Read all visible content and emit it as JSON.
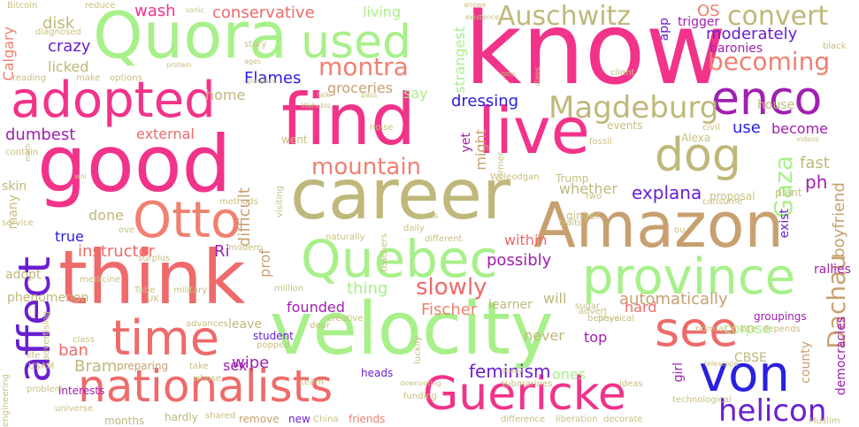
{
  "cloud": {
    "background": "#ffffff",
    "palette": {
      "pink": "#f2338a",
      "rose": "#ef6a6a",
      "salmon": "#f08070",
      "lime": "#a8f08a",
      "olive": "#bfb87a",
      "tan": "#c8a070",
      "purple": "#a020b0",
      "violet": "#6a1fd0",
      "blue": "#2a20e0",
      "khaki": "#c8c080"
    },
    "words": [
      {
        "text": "know",
        "color": "#f2338a"
      },
      {
        "text": "good",
        "color": "#f2338a"
      },
      {
        "text": "Quora",
        "color": "#a8f08a"
      },
      {
        "text": "find",
        "color": "#f2338a"
      },
      {
        "text": "career",
        "color": "#bfb87a"
      },
      {
        "text": "think",
        "color": "#ef6a6a"
      },
      {
        "text": "velocity",
        "color": "#a8f08a"
      },
      {
        "text": "Amazon",
        "color": "#c8a070"
      },
      {
        "text": "live",
        "color": "#f2338a"
      },
      {
        "text": "nationalists",
        "color": "#ef6a6a"
      },
      {
        "text": "Guericke",
        "color": "#f2338a"
      },
      {
        "text": "adopted",
        "color": "#f2338a"
      },
      {
        "text": "province",
        "color": "#a8f08a"
      },
      {
        "text": "Quebec",
        "color": "#a8f08a"
      },
      {
        "text": "affect",
        "color": "#6a1fd0"
      },
      {
        "text": "time",
        "color": "#ef6a6a"
      },
      {
        "text": "Otto",
        "color": "#f08070"
      },
      {
        "text": "von",
        "color": "#2a20e0"
      },
      {
        "text": "used",
        "color": "#a8f08a"
      },
      {
        "text": "see",
        "color": "#ef6a6a"
      },
      {
        "text": "dog",
        "color": "#bfb87a"
      },
      {
        "text": "enco",
        "color": "#a020b0"
      },
      {
        "text": "helicon",
        "color": "#6a1fd0"
      },
      {
        "text": "Magdeburg",
        "color": "#bfb87a"
      },
      {
        "text": "Auschwitz",
        "color": "#bfb87a"
      },
      {
        "text": "convert",
        "color": "#bfb87a"
      },
      {
        "text": "montra",
        "color": "#f08070"
      },
      {
        "text": "becoming",
        "color": "#f08070"
      },
      {
        "text": "mountain",
        "color": "#f08070"
      },
      {
        "text": "slowly",
        "color": "#ef6a6a"
      },
      {
        "text": "Dachau",
        "color": "#c8a070"
      },
      {
        "text": "Gaza",
        "color": "#a8f08a"
      },
      {
        "text": "feminism",
        "color": "#6a1fd0"
      },
      {
        "text": "Fischer",
        "color": "#f08070"
      },
      {
        "text": "conservative",
        "color": "#ef6a6a"
      },
      {
        "text": "moderately",
        "color": "#6a1fd0"
      },
      {
        "text": "automatically",
        "color": "#c8a070"
      },
      {
        "text": "possibly",
        "color": "#a020b0"
      },
      {
        "text": "dressing",
        "color": "#2a20e0"
      },
      {
        "text": "explana",
        "color": "#6a1fd0"
      },
      {
        "text": "groceries",
        "color": "#c8a070"
      },
      {
        "text": "wash",
        "color": "#f2338a"
      },
      {
        "text": "crazy",
        "color": "#6a1fd0"
      },
      {
        "text": "Flames",
        "color": "#2a20e0"
      },
      {
        "text": "disk",
        "color": "#bfb87a"
      },
      {
        "text": "licked",
        "color": "#bfb87a"
      },
      {
        "text": "home",
        "color": "#bfb87a"
      },
      {
        "text": "dumbest",
        "color": "#a020b0"
      },
      {
        "text": "external",
        "color": "#ef6a6a"
      },
      {
        "text": "instructor",
        "color": "#ef6a6a"
      },
      {
        "text": "founded",
        "color": "#a020b0"
      },
      {
        "text": "thing",
        "color": "#a8f08a"
      },
      {
        "text": "hard",
        "color": "#ef6a6a"
      },
      {
        "text": "ban",
        "color": "#ef6a6a"
      },
      {
        "text": "Bram",
        "color": "#bfb87a"
      },
      {
        "text": "wipe",
        "color": "#a020b0"
      },
      {
        "text": "sex",
        "color": "#a020b0"
      },
      {
        "text": "true",
        "color": "#2a20e0"
      },
      {
        "text": "Ri",
        "color": "#a020b0"
      },
      {
        "text": "done",
        "color": "#bfb87a"
      },
      {
        "text": "living",
        "color": "#a8f08a"
      },
      {
        "text": "say",
        "color": "#a8f08a"
      },
      {
        "text": "yet",
        "color": "#a020b0"
      },
      {
        "text": "use",
        "color": "#2a20e0"
      },
      {
        "text": "become",
        "color": "#a020b0"
      },
      {
        "text": "fast",
        "color": "#bfb87a"
      },
      {
        "text": "exist",
        "color": "#6a1fd0"
      },
      {
        "text": "ph",
        "color": "#a020b0"
      },
      {
        "text": "whether",
        "color": "#bfb87a"
      },
      {
        "text": "within",
        "color": "#ef6a6a"
      },
      {
        "text": "will",
        "color": "#bfb87a"
      },
      {
        "text": "top",
        "color": "#a020b0"
      },
      {
        "text": "never",
        "color": "#bfb87a"
      },
      {
        "text": "corpse",
        "color": "#a8f08a"
      },
      {
        "text": "CBSE",
        "color": "#bfb87a"
      },
      {
        "text": "county",
        "color": "#c8a070"
      },
      {
        "text": "girl",
        "color": "#a020b0"
      },
      {
        "text": "ones",
        "color": "#a8f08a"
      },
      {
        "text": "heads",
        "color": "#6a1fd0"
      },
      {
        "text": "student",
        "color": "#6a1fd0"
      },
      {
        "text": "prof",
        "color": "#c8a070"
      },
      {
        "text": "difficult",
        "color": "#c8a070"
      },
      {
        "text": "app",
        "color": "#6a1fd0"
      },
      {
        "text": "trigger",
        "color": "#a020b0"
      },
      {
        "text": "OS",
        "color": "#f08070"
      },
      {
        "text": "baronies",
        "color": "#a020b0"
      },
      {
        "text": "house",
        "color": "#bfb87a"
      },
      {
        "text": "boyfriend",
        "color": "#c8a070"
      },
      {
        "text": "rallies",
        "color": "#a020b0"
      },
      {
        "text": "democracies",
        "color": "#a020b0"
      },
      {
        "text": "groupings",
        "color": "#a020b0"
      },
      {
        "text": "phenomenon",
        "color": "#bfb87a"
      },
      {
        "text": "preparing",
        "color": "#c8a070"
      },
      {
        "text": "interests",
        "color": "#a020b0"
      },
      {
        "text": "months",
        "color": "#bfb87a"
      },
      {
        "text": "hardly",
        "color": "#bfb87a"
      },
      {
        "text": "friends",
        "color": "#f08070"
      },
      {
        "text": "remove",
        "color": "#c8a070"
      },
      {
        "text": "new",
        "color": "#6a1fd0"
      },
      {
        "text": "leave",
        "color": "#bfb87a"
      },
      {
        "text": "learner",
        "color": "#bfb87a"
      },
      {
        "text": "strangest",
        "color": "#a8f08a"
      },
      {
        "text": "might",
        "color": "#c8a070"
      },
      {
        "text": "adopt",
        "color": "#bfb87a"
      },
      {
        "text": "many",
        "color": "#c8c080"
      },
      {
        "text": "skin",
        "color": "#bfb87a"
      },
      {
        "text": "Calgary",
        "color": "#f08070"
      },
      {
        "text": "reading",
        "color": "#c8c080"
      },
      {
        "text": "make",
        "color": "#c8c080"
      },
      {
        "text": "options",
        "color": "#c8c080"
      },
      {
        "text": "Bitcoin",
        "color": "#c8c080"
      },
      {
        "text": "reduce",
        "color": "#c8c080"
      },
      {
        "text": "diagnosed",
        "color": "#c8c080"
      },
      {
        "text": "sonic",
        "color": "#c8c080"
      },
      {
        "text": "answe",
        "color": "#c8c080"
      },
      {
        "text": "existence",
        "color": "#c8c080"
      },
      {
        "text": "story",
        "color": "#c8c080"
      },
      {
        "text": "ages",
        "color": "#c8c080"
      },
      {
        "text": "protein",
        "color": "#c8c080"
      },
      {
        "text": "puritans",
        "color": "#c8c080"
      },
      {
        "text": "Wahabis",
        "color": "#c8c080"
      },
      {
        "text": "pass",
        "color": "#c8c080"
      },
      {
        "text": "talk",
        "color": "#c8c080"
      },
      {
        "text": "gms",
        "color": "#c8c080"
      },
      {
        "text": "steps",
        "color": "#c8c080"
      },
      {
        "text": "client",
        "color": "#c8c080"
      },
      {
        "text": "black",
        "color": "#c8c080"
      },
      {
        "text": "civil",
        "color": "#c8c080"
      },
      {
        "text": "videos",
        "color": "#c8c080"
      },
      {
        "text": "events",
        "color": "#c8c080"
      },
      {
        "text": "Alexa",
        "color": "#c8c080"
      },
      {
        "text": "went",
        "color": "#c8c080"
      },
      {
        "text": "noise",
        "color": "#c8c080"
      },
      {
        "text": "fossil",
        "color": "#c8c080"
      },
      {
        "text": "former",
        "color": "#c8c080"
      },
      {
        "text": "contain",
        "color": "#c8c080"
      },
      {
        "text": "math",
        "color": "#c8c080"
      },
      {
        "text": "woi",
        "color": "#c8c080"
      },
      {
        "text": "Trump",
        "color": "#c8c080"
      },
      {
        "text": "Wcleodgan",
        "color": "#c8c080"
      },
      {
        "text": "two",
        "color": "#c8c080"
      },
      {
        "text": "methods",
        "color": "#c8c080"
      },
      {
        "text": "visiting",
        "color": "#c8c080"
      },
      {
        "text": "teachers",
        "color": "#c8c080"
      },
      {
        "text": "meas",
        "color": "#c8c080"
      },
      {
        "text": "daily",
        "color": "#c8c080"
      },
      {
        "text": "ginger",
        "color": "#c8c080"
      },
      {
        "text": "traits",
        "color": "#c8c080"
      },
      {
        "text": "consume",
        "color": "#c8c080"
      },
      {
        "text": "proposal",
        "color": "#c8c080"
      },
      {
        "text": "plant",
        "color": "#c8c080"
      },
      {
        "text": "service",
        "color": "#c8c080"
      },
      {
        "text": "ove",
        "color": "#c8c080"
      },
      {
        "text": "naturally",
        "color": "#c8c080"
      },
      {
        "text": "different",
        "color": "#c8c080"
      },
      {
        "text": "ou",
        "color": "#c8c080"
      },
      {
        "text": "modern",
        "color": "#c8c080"
      },
      {
        "text": "surplus",
        "color": "#c8c080"
      },
      {
        "text": "medicine",
        "color": "#c8c080"
      },
      {
        "text": "military",
        "color": "#c8c080"
      },
      {
        "text": "depr",
        "color": "#c8c080"
      },
      {
        "text": "advert",
        "color": "#c8c080"
      },
      {
        "text": "believe",
        "color": "#c8c080"
      },
      {
        "text": "normal",
        "color": "#c8c080"
      },
      {
        "text": "late",
        "color": "#c8c080"
      },
      {
        "text": "depends",
        "color": "#c8c080"
      },
      {
        "text": "Tube",
        "color": "#c8c080"
      },
      {
        "text": "UK",
        "color": "#c8c080"
      },
      {
        "text": "million",
        "color": "#c8c080"
      },
      {
        "text": "sugar",
        "color": "#c8c080"
      },
      {
        "text": "physical",
        "color": "#c8c080"
      },
      {
        "text": "advertising",
        "color": "#c8c080"
      },
      {
        "text": "advances",
        "color": "#c8c080"
      },
      {
        "text": "creative",
        "color": "#c8c080"
      },
      {
        "text": "class",
        "color": "#c8c080"
      },
      {
        "text": "popped",
        "color": "#c8c080"
      },
      {
        "text": "luckily",
        "color": "#c8c080"
      },
      {
        "text": "life",
        "color": "#c8c080"
      },
      {
        "text": "USAM",
        "color": "#c8c080"
      },
      {
        "text": "take",
        "color": "#c8c080"
      },
      {
        "text": "whose",
        "color": "#c8c080"
      },
      {
        "text": "team",
        "color": "#c8c080"
      },
      {
        "text": "today",
        "color": "#c8c080"
      },
      {
        "text": "submarines",
        "color": "#c8c080"
      },
      {
        "text": "ideas",
        "color": "#c8c080"
      },
      {
        "text": "telescope",
        "color": "#c8c080"
      },
      {
        "text": "problem",
        "color": "#c8c080"
      },
      {
        "text": "downvoting",
        "color": "#c8c080"
      },
      {
        "text": "funding",
        "color": "#c8c080"
      },
      {
        "text": "technological",
        "color": "#c8c080"
      },
      {
        "text": "Muslim",
        "color": "#c8c080"
      },
      {
        "text": "universe",
        "color": "#c8c080"
      },
      {
        "text": "shared",
        "color": "#c8c080"
      },
      {
        "text": "China",
        "color": "#c8c080"
      },
      {
        "text": "difference",
        "color": "#c8c080"
      },
      {
        "text": "liberation",
        "color": "#c8c080"
      },
      {
        "text": "decorate",
        "color": "#c8c080"
      },
      {
        "text": "engineering",
        "color": "#c8c080"
      }
    ]
  }
}
